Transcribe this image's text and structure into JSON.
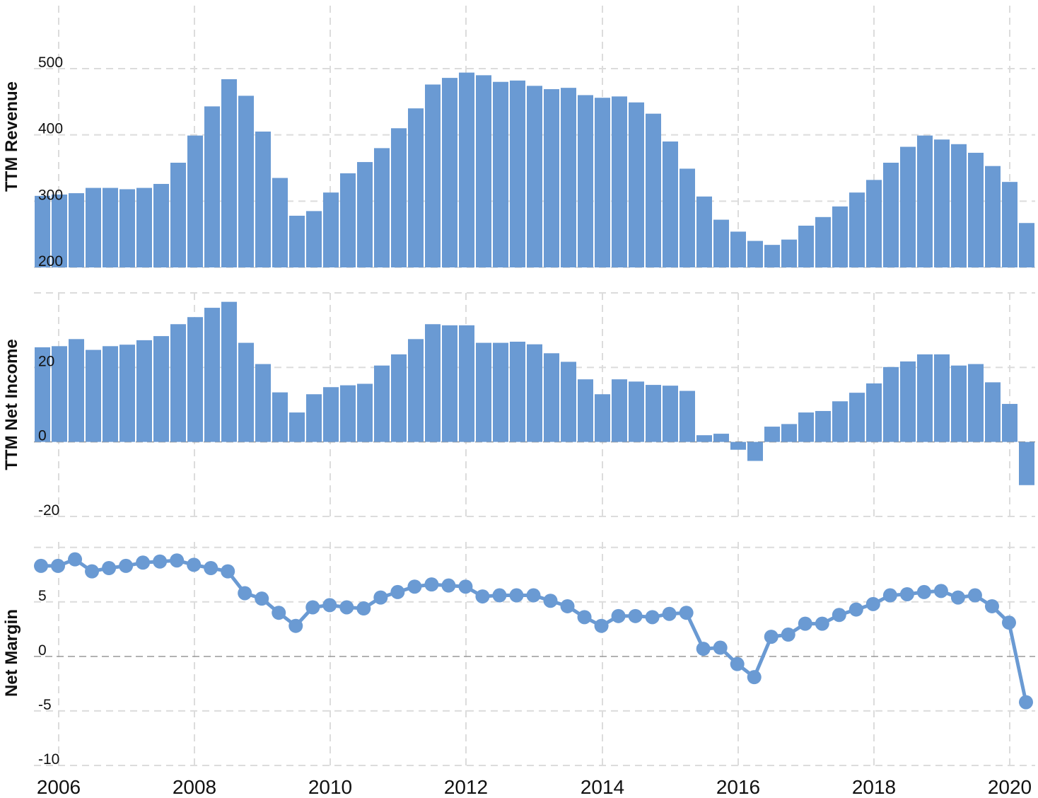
{
  "colors": {
    "bar": "#6a9ad3",
    "line": "#6a9ad3",
    "grid": "#dcdcdc"
  },
  "chart_data": [
    {
      "type": "bar",
      "ylabel": "TTM Revenue",
      "ylim": [
        200,
        595
      ],
      "yticks": [
        200,
        300,
        400,
        500
      ],
      "grid": true,
      "x": [
        "2005-09",
        "2005-12",
        "2006-03",
        "2006-06",
        "2006-09",
        "2006-12",
        "2007-03",
        "2007-06",
        "2007-09",
        "2007-12",
        "2008-03",
        "2008-06",
        "2008-09",
        "2008-12",
        "2009-03",
        "2009-06",
        "2009-09",
        "2009-12",
        "2010-03",
        "2010-06",
        "2010-09",
        "2010-12",
        "2011-03",
        "2011-06",
        "2011-09",
        "2011-12",
        "2012-03",
        "2012-06",
        "2012-09",
        "2012-12",
        "2013-03",
        "2013-06",
        "2013-09",
        "2013-12",
        "2014-03",
        "2014-06",
        "2014-09",
        "2014-12",
        "2015-03",
        "2015-06",
        "2015-09",
        "2015-12",
        "2016-03",
        "2016-06",
        "2016-09",
        "2016-12",
        "2017-03",
        "2017-06",
        "2017-09",
        "2017-12",
        "2018-03",
        "2018-06",
        "2018-09",
        "2018-12",
        "2019-03",
        "2019-06",
        "2019-09",
        "2019-12",
        "2020-03"
      ],
      "values": [
        308,
        310,
        312,
        320,
        320,
        318,
        320,
        326,
        358,
        399,
        443,
        484,
        459,
        405,
        335,
        278,
        285,
        313,
        342,
        359,
        380,
        410,
        440,
        476,
        486,
        494,
        490,
        480,
        482,
        474,
        469,
        471,
        460,
        456,
        458,
        449,
        432,
        390,
        349,
        307,
        272,
        254,
        240,
        234,
        242,
        263,
        276,
        292,
        313,
        332,
        358,
        382,
        399,
        393,
        386,
        373,
        353,
        329,
        267
      ]
    },
    {
      "type": "bar",
      "ylabel": "TTM Net Income",
      "ylim": [
        -20,
        40
      ],
      "yticks": [
        -20,
        0,
        20
      ],
      "grid": true,
      "x": [
        "2005-09",
        "2005-12",
        "2006-03",
        "2006-06",
        "2006-09",
        "2006-12",
        "2007-03",
        "2007-06",
        "2007-09",
        "2007-12",
        "2008-03",
        "2008-06",
        "2008-09",
        "2008-12",
        "2009-03",
        "2009-06",
        "2009-09",
        "2009-12",
        "2010-03",
        "2010-06",
        "2010-09",
        "2010-12",
        "2011-03",
        "2011-06",
        "2011-09",
        "2011-12",
        "2012-03",
        "2012-06",
        "2012-09",
        "2012-12",
        "2013-03",
        "2013-06",
        "2013-09",
        "2013-12",
        "2014-03",
        "2014-06",
        "2014-09",
        "2014-12",
        "2015-03",
        "2015-06",
        "2015-09",
        "2015-12",
        "2016-03",
        "2016-06",
        "2016-09",
        "2016-12",
        "2017-03",
        "2017-06",
        "2017-09",
        "2017-12",
        "2018-03",
        "2018-06",
        "2018-09",
        "2018-12",
        "2019-03",
        "2019-06",
        "2019-09",
        "2019-12",
        "2020-03"
      ],
      "values": [
        25.4,
        25.7,
        27.6,
        24.7,
        25.7,
        26.1,
        27.3,
        28.4,
        31.6,
        33.5,
        36.0,
        37.6,
        26.6,
        20.9,
        13.3,
        7.9,
        12.8,
        14.7,
        15.2,
        15.6,
        20.5,
        23.5,
        27.6,
        31.6,
        31.3,
        31.3,
        26.6,
        26.6,
        26.9,
        26.2,
        23.8,
        21.5,
        16.8,
        12.8,
        16.8,
        16.2,
        15.3,
        15.1,
        13.7,
        1.8,
        2.2,
        -2.1,
        -5.1,
        4.1,
        4.8,
        7.9,
        8.3,
        10.9,
        13.2,
        15.7,
        20.1,
        21.6,
        23.5,
        23.5,
        20.5,
        20.9,
        16.0,
        10.2,
        -11.6
      ]
    },
    {
      "type": "line",
      "ylabel": "Net Margin",
      "ylim": [
        -10,
        10.5
      ],
      "yticks": [
        -10,
        -5,
        0,
        5
      ],
      "grid": true,
      "x": [
        "2005-09",
        "2005-12",
        "2006-03",
        "2006-06",
        "2006-09",
        "2006-12",
        "2007-03",
        "2007-06",
        "2007-09",
        "2007-12",
        "2008-03",
        "2008-06",
        "2008-09",
        "2008-12",
        "2009-03",
        "2009-06",
        "2009-09",
        "2009-12",
        "2010-03",
        "2010-06",
        "2010-09",
        "2010-12",
        "2011-03",
        "2011-06",
        "2011-09",
        "2011-12",
        "2012-03",
        "2012-06",
        "2012-09",
        "2012-12",
        "2013-03",
        "2013-06",
        "2013-09",
        "2013-12",
        "2014-03",
        "2014-06",
        "2014-09",
        "2014-12",
        "2015-03",
        "2015-06",
        "2015-09",
        "2015-12",
        "2016-03",
        "2016-06",
        "2016-09",
        "2016-12",
        "2017-03",
        "2017-06",
        "2017-09",
        "2017-12",
        "2018-03",
        "2018-06",
        "2018-09",
        "2018-12",
        "2019-03",
        "2019-06",
        "2019-09",
        "2019-12",
        "2020-03"
      ],
      "values": [
        8.3,
        8.3,
        8.9,
        7.8,
        8.1,
        8.3,
        8.6,
        8.7,
        8.8,
        8.4,
        8.1,
        7.8,
        5.8,
        5.3,
        4.0,
        2.8,
        4.5,
        4.7,
        4.5,
        4.4,
        5.4,
        5.9,
        6.4,
        6.6,
        6.5,
        6.4,
        5.5,
        5.6,
        5.6,
        5.6,
        5.1,
        4.6,
        3.6,
        2.8,
        3.7,
        3.7,
        3.6,
        3.9,
        4.0,
        0.7,
        0.8,
        -0.7,
        -1.9,
        1.8,
        2.0,
        3.0,
        3.0,
        3.8,
        4.3,
        4.8,
        5.6,
        5.7,
        5.9,
        6.0,
        5.4,
        5.6,
        4.6,
        3.1,
        -4.2
      ]
    }
  ],
  "x_axis": {
    "start": "2005-09",
    "end": "2020-03",
    "tick_labels": [
      "2006",
      "2008",
      "2010",
      "2012",
      "2014",
      "2016",
      "2018",
      "2020"
    ]
  }
}
